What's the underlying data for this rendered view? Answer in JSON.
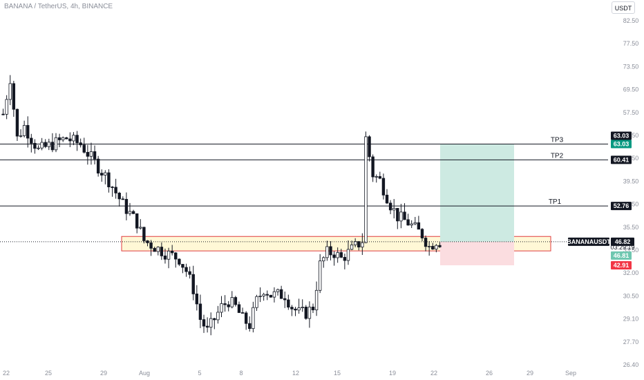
{
  "header": {
    "title": "BANANA / TetherUS, 4h, BINANCE"
  },
  "currency_button": {
    "label": "USDT"
  },
  "chart_data": {
    "type": "candlestick",
    "symbol": "BANANAUSDT",
    "timeframe": "4h",
    "exchange": "BINANCE",
    "quote_currency": "USDT",
    "x_ticks": [
      "22",
      "25",
      "29",
      "Aug",
      "5",
      "8",
      "12",
      "15",
      "19",
      "22",
      "26",
      "29",
      "Sep"
    ],
    "y_ticks": [
      "82.50",
      "77.50",
      "73.50",
      "69.50",
      "57.50",
      "49.50",
      "41.50",
      "39.50",
      "37.50",
      "35.50",
      "33.50",
      "32.00",
      "30.50",
      "29.10",
      "27.70",
      "26.40"
    ],
    "ylim": [
      26.4,
      83.5
    ],
    "price_path": [
      [
        0,
        68
      ],
      [
        2,
        74
      ],
      [
        4,
        64
      ],
      [
        6,
        66
      ],
      [
        10,
        62
      ],
      [
        14,
        63
      ],
      [
        18,
        64
      ],
      [
        22,
        63
      ],
      [
        26,
        60
      ],
      [
        30,
        57
      ],
      [
        34,
        53
      ],
      [
        38,
        50
      ],
      [
        40,
        47
      ],
      [
        43,
        46
      ],
      [
        46,
        45
      ],
      [
        50,
        44
      ],
      [
        52,
        42
      ],
      [
        54,
        39
      ],
      [
        56,
        34
      ],
      [
        58,
        32
      ],
      [
        60,
        34
      ],
      [
        62,
        36
      ],
      [
        64,
        37
      ],
      [
        66,
        36
      ],
      [
        68,
        34
      ],
      [
        70,
        33
      ],
      [
        72,
        37
      ],
      [
        74,
        39
      ],
      [
        76,
        38
      ],
      [
        78,
        38
      ],
      [
        80,
        38
      ],
      [
        82,
        36
      ],
      [
        84,
        35
      ],
      [
        86,
        35
      ],
      [
        88,
        36
      ],
      [
        90,
        43
      ],
      [
        92,
        45
      ],
      [
        94,
        45
      ],
      [
        96,
        44
      ],
      [
        98,
        45
      ],
      [
        100,
        46
      ],
      [
        102,
        47
      ],
      [
        103,
        64
      ],
      [
        105,
        58
      ],
      [
        107,
        57
      ],
      [
        110,
        53
      ],
      [
        112,
        51
      ],
      [
        115,
        50
      ],
      [
        117,
        49
      ],
      [
        119,
        48
      ],
      [
        121,
        46
      ],
      [
        123,
        47
      ],
      [
        124,
        46.82
      ]
    ],
    "levels": [
      {
        "label": "TP3",
        "price": 63.03
      },
      {
        "label": "TP2",
        "price": 60.41
      },
      {
        "label": "TP1",
        "price": 52.76
      }
    ],
    "zone": {
      "low": 45.3,
      "high": 47.7,
      "fill": "#fff8d6",
      "border": "#e03a3e"
    },
    "position": {
      "entry": 46.82,
      "target": 63.03,
      "stop": 42.91,
      "profit_color": "#cdeae2",
      "loss_color": "#fbdde0"
    },
    "price_tags": {
      "tp3": {
        "text": "63.03",
        "bg": "#131722"
      },
      "target": {
        "text": "63.03",
        "bg": "#089981"
      },
      "tp2": {
        "text": "60.41",
        "bg": "#131722"
      },
      "tp1": {
        "text": "52.76",
        "bg": "#131722"
      },
      "symbol": {
        "text": "BANANAUSDT",
        "bg": "#131722"
      },
      "last": {
        "text": "46.82",
        "bg": "#131722"
      },
      "countdown": {
        "text": "03:29:19"
      },
      "bid": {
        "text": "46.81",
        "bg": "#6fc7b0"
      },
      "stop": {
        "text": "42.91",
        "bg": "#f23645"
      }
    },
    "colors": {
      "up": "#131722",
      "down": "#131722",
      "grid": false
    }
  }
}
